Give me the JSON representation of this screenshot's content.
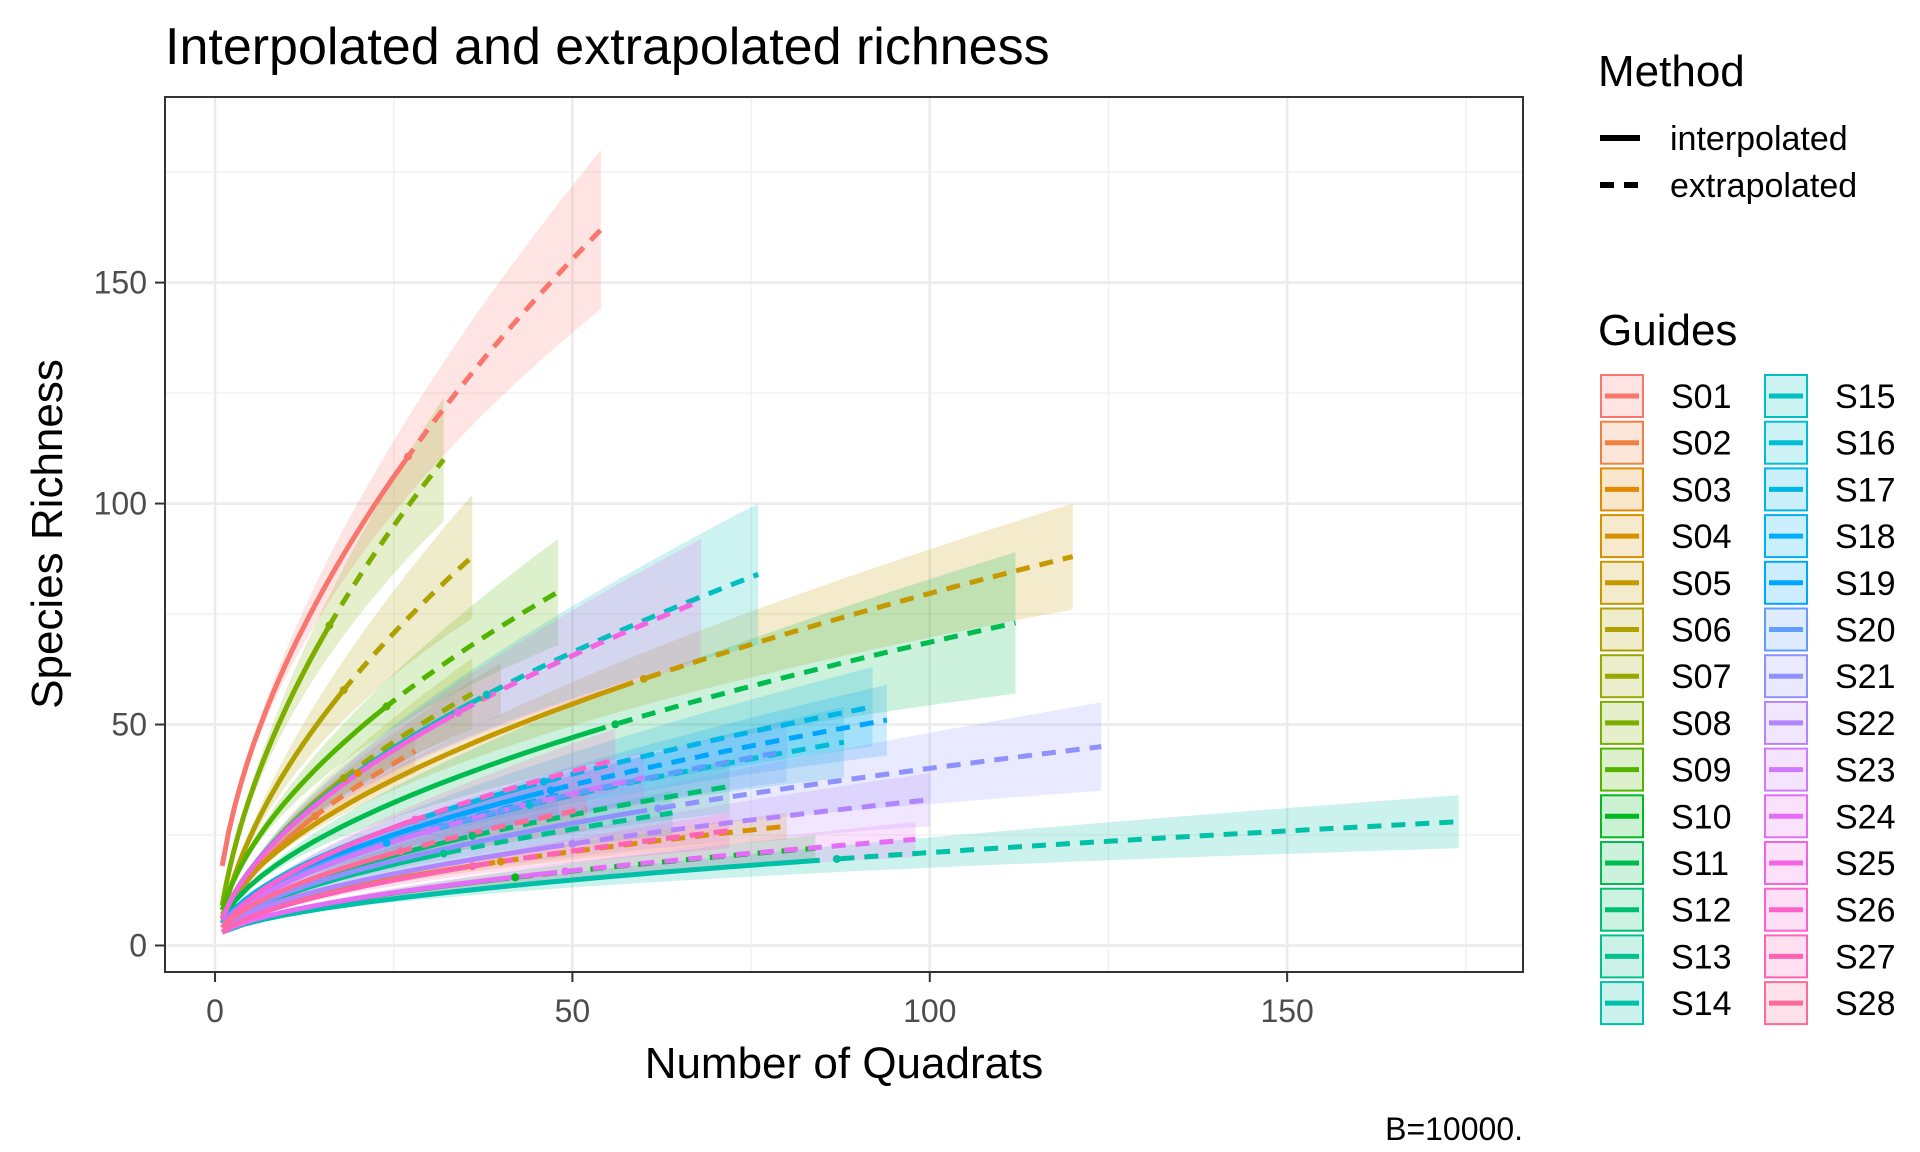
{
  "chart_data": {
    "type": "line",
    "title": "Interpolated and extrapolated richness",
    "xlabel": "Number of Quadrats",
    "ylabel": "Species Richness",
    "caption": "B=10000.",
    "xlim": [
      -7,
      183
    ],
    "ylim": [
      -6,
      192
    ],
    "x_ticks": [
      0,
      50,
      100,
      150
    ],
    "y_ticks": [
      0,
      50,
      100,
      150
    ],
    "grid": true,
    "legend_position": "right",
    "method_legend": {
      "title": "Method",
      "entries": [
        {
          "label": "interpolated",
          "linetype": "solid"
        },
        {
          "label": "extrapolated",
          "linetype": "dashed"
        }
      ]
    },
    "guides_legend": {
      "title": "Guides"
    },
    "series": [
      {
        "name": "S01",
        "color": "#F8766D",
        "n_obs": 27,
        "x_max": 54,
        "y_end": 162,
        "y_start": 18,
        "band": 18
      },
      {
        "name": "S02",
        "color": "#EE8043",
        "n_obs": 14,
        "x_max": 28,
        "y_end": 44,
        "y_start": 5,
        "band": 5
      },
      {
        "name": "S03",
        "color": "#E38900",
        "n_obs": 20,
        "x_max": 40,
        "y_end": 58,
        "y_start": 6,
        "band": 6
      },
      {
        "name": "S04",
        "color": "#D59100",
        "n_obs": 40,
        "x_max": 80,
        "y_end": 27,
        "y_start": 4,
        "band": 3
      },
      {
        "name": "S05",
        "color": "#C49A00",
        "n_obs": 60,
        "x_max": 120,
        "y_end": 88,
        "y_start": 7,
        "band": 12
      },
      {
        "name": "S06",
        "color": "#B0A100",
        "n_obs": 18,
        "x_max": 36,
        "y_end": 88,
        "y_start": 6,
        "band": 14
      },
      {
        "name": "S07",
        "color": "#99A800",
        "n_obs": 18,
        "x_max": 36,
        "y_end": 57,
        "y_start": 5,
        "band": 8
      },
      {
        "name": "S08",
        "color": "#7CAE00",
        "n_obs": 16,
        "x_max": 32,
        "y_end": 110,
        "y_start": 9,
        "band": 14
      },
      {
        "name": "S09",
        "color": "#53B400",
        "n_obs": 24,
        "x_max": 48,
        "y_end": 80,
        "y_start": 8,
        "band": 12
      },
      {
        "name": "S10",
        "color": "#00B81F",
        "n_obs": 42,
        "x_max": 84,
        "y_end": 22,
        "y_start": 3,
        "band": 3
      },
      {
        "name": "S11",
        "color": "#00BB4E",
        "n_obs": 56,
        "x_max": 112,
        "y_end": 73,
        "y_start": 6,
        "band": 16
      },
      {
        "name": "S12",
        "color": "#00BE70",
        "n_obs": 36,
        "x_max": 72,
        "y_end": 36,
        "y_start": 4,
        "band": 6
      },
      {
        "name": "S13",
        "color": "#00C08D",
        "n_obs": 32,
        "x_max": 64,
        "y_end": 30,
        "y_start": 4,
        "band": 5
      },
      {
        "name": "S14",
        "color": "#00C0A7",
        "n_obs": 87,
        "x_max": 174,
        "y_end": 28,
        "y_start": 3,
        "band": 6
      },
      {
        "name": "S15",
        "color": "#00BFBE",
        "n_obs": 38,
        "x_max": 76,
        "y_end": 84,
        "y_start": 6,
        "band": 16
      },
      {
        "name": "S16",
        "color": "#00BCD4",
        "n_obs": 44,
        "x_max": 88,
        "y_end": 46,
        "y_start": 5,
        "band": 8
      },
      {
        "name": "S17",
        "color": "#00B6E7",
        "n_obs": 46,
        "x_max": 92,
        "y_end": 54,
        "y_start": 5,
        "band": 9
      },
      {
        "name": "S18",
        "color": "#00AEF9",
        "n_obs": 24,
        "x_max": 48,
        "y_end": 34,
        "y_start": 4,
        "band": 5
      },
      {
        "name": "S19",
        "color": "#00A5FF",
        "n_obs": 47,
        "x_max": 94,
        "y_end": 51,
        "y_start": 5,
        "band": 8
      },
      {
        "name": "S20",
        "color": "#619CFF",
        "n_obs": 40,
        "x_max": 80,
        "y_end": 44,
        "y_start": 5,
        "band": 7
      },
      {
        "name": "S21",
        "color": "#8F91FF",
        "n_obs": 62,
        "x_max": 124,
        "y_end": 45,
        "y_start": 4,
        "band": 10
      },
      {
        "name": "S22",
        "color": "#B285FF",
        "n_obs": 50,
        "x_max": 100,
        "y_end": 33,
        "y_start": 4,
        "band": 6
      },
      {
        "name": "S23",
        "color": "#CE79FF",
        "n_obs": 30,
        "x_max": 60,
        "y_end": 38,
        "y_start": 4,
        "band": 6
      },
      {
        "name": "S24",
        "color": "#E46CF6",
        "n_obs": 49,
        "x_max": 98,
        "y_end": 24,
        "y_start": 3,
        "band": 4
      },
      {
        "name": "S25",
        "color": "#F464E2",
        "n_obs": 34,
        "x_max": 68,
        "y_end": 78,
        "y_start": 6,
        "band": 14
      },
      {
        "name": "S26",
        "color": "#FD61CC",
        "n_obs": 28,
        "x_max": 56,
        "y_end": 42,
        "y_start": 4,
        "band": 7
      },
      {
        "name": "S27",
        "color": "#FF63B4",
        "n_obs": 36,
        "x_max": 72,
        "y_end": 26,
        "y_start": 3,
        "band": 4
      },
      {
        "name": "S28",
        "color": "#FF6B98",
        "n_obs": 26,
        "x_max": 52,
        "y_end": 31,
        "y_start": 4,
        "band": 5
      }
    ]
  }
}
